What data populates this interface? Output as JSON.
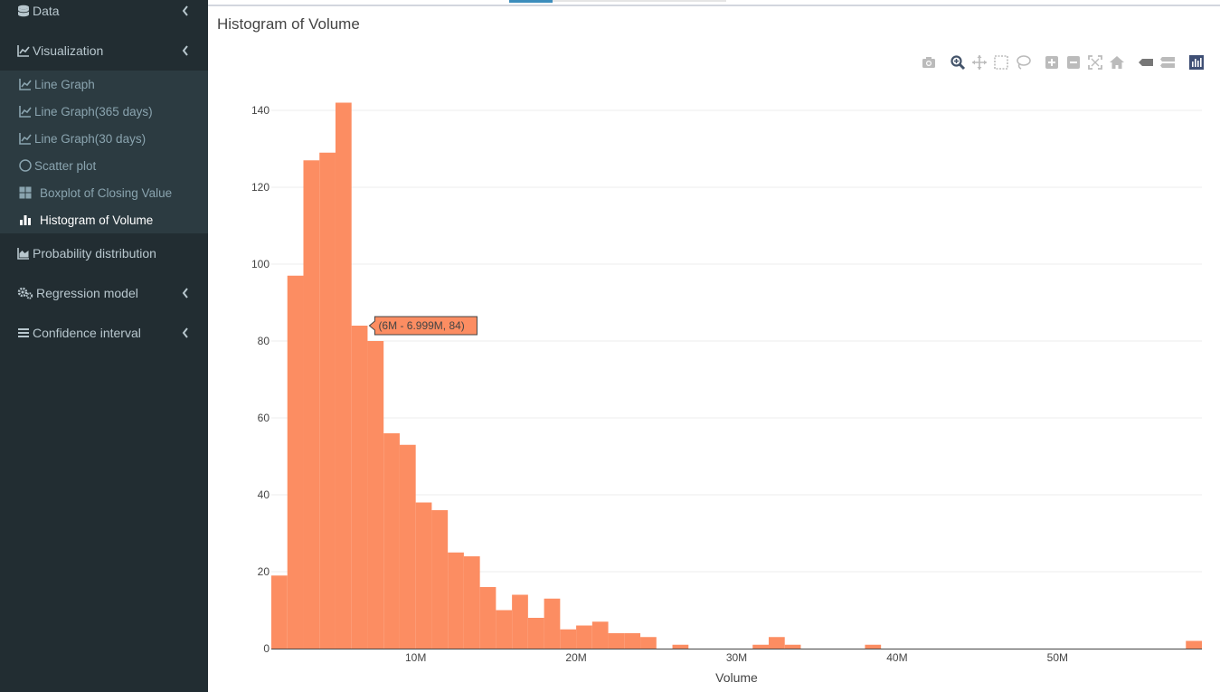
{
  "sidebar": {
    "items": [
      {
        "label": "Data",
        "icon": "database-icon",
        "has_chevron": true
      },
      {
        "label": "Visualization",
        "icon": "line-chart-icon",
        "has_chevron": true
      },
      {
        "label": "Probability distribution",
        "icon": "area-chart-icon",
        "has_chevron": false
      },
      {
        "label": "Regression model",
        "icon": "gears-icon",
        "has_chevron": true
      },
      {
        "label": "Confidence interval",
        "icon": "bars-icon",
        "has_chevron": true
      }
    ],
    "visualization_sub": [
      {
        "label": "Line Graph",
        "icon": "line-chart-icon"
      },
      {
        "label": "Line Graph(365 days)",
        "icon": "line-chart-icon"
      },
      {
        "label": "Line Graph(30 days)",
        "icon": "line-chart-icon"
      },
      {
        "label": "Scatter plot",
        "icon": "circle-icon"
      },
      {
        "label": "Boxplot of Closing Value",
        "icon": "th-large-icon"
      },
      {
        "label": "Histogram of Volume",
        "icon": "bar-chart-icon",
        "active": true
      }
    ]
  },
  "main": {
    "title": "Histogram of Volume"
  },
  "modebar": [
    "camera-icon",
    "zoom-icon",
    "pan-icon",
    "box-select-icon",
    "lasso-icon",
    "zoom-in-icon",
    "zoom-out-icon",
    "autoscale-icon",
    "reset-axes-icon",
    "hover-closest-icon",
    "hover-compare-icon",
    "plotly-logo-icon"
  ],
  "colors": {
    "bar": "#fc8d62",
    "sidebar": "#222d32",
    "submenu": "#2c3b41",
    "accent": "#3c8dbc"
  },
  "chart_data": {
    "type": "bar",
    "title": "Histogram of Volume",
    "xlabel": "Volume",
    "ylabel": "",
    "bin_width": 1000000,
    "x_start": 1000000,
    "values": [
      19,
      97,
      127,
      129,
      142,
      84,
      80,
      56,
      53,
      38,
      36,
      25,
      24,
      16,
      10,
      14,
      8,
      13,
      5,
      6,
      7,
      4,
      4,
      3,
      0,
      1,
      0,
      0,
      0,
      0,
      1,
      3,
      1,
      0,
      0,
      0,
      0,
      1,
      0,
      0,
      0,
      0,
      0,
      0,
      0,
      0,
      0,
      0,
      0,
      0,
      0,
      0,
      0,
      0,
      0,
      0,
      0,
      2
    ],
    "xlim": [
      1000000,
      59000000
    ],
    "ylim": [
      0,
      150
    ],
    "yticks": [
      0,
      20,
      40,
      60,
      80,
      100,
      120,
      140
    ],
    "xticks": [
      {
        "value": 10000000,
        "label": "10M"
      },
      {
        "value": 20000000,
        "label": "20M"
      },
      {
        "value": 30000000,
        "label": "30M"
      },
      {
        "value": 40000000,
        "label": "40M"
      },
      {
        "value": 50000000,
        "label": "50M"
      }
    ],
    "grid": true,
    "tooltip": {
      "text": "(6M - 6.999M, 84)",
      "bin_index": 5
    }
  }
}
